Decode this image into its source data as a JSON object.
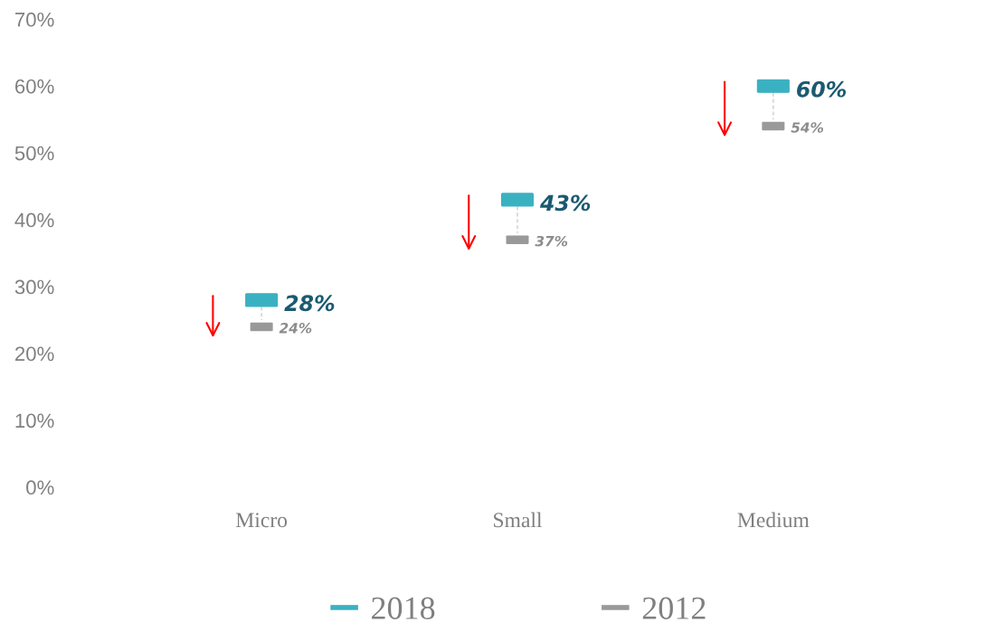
{
  "chart_data": {
    "type": "scatter",
    "categories": [
      "Micro",
      "Small",
      "Medium"
    ],
    "series": [
      {
        "name": "2018",
        "color": "#3ab1c1",
        "values": [
          28,
          43,
          60
        ],
        "value_labels": [
          "28%",
          "43%",
          "60%"
        ]
      },
      {
        "name": "2012",
        "color": "#999999",
        "values": [
          24,
          37,
          54
        ],
        "value_labels": [
          "24%",
          "37%",
          "54%"
        ]
      }
    ],
    "ylim": [
      0,
      70
    ],
    "yticks": [
      {
        "value": 0,
        "label": "0%"
      },
      {
        "value": 10,
        "label": "10%"
      },
      {
        "value": 20,
        "label": "20%"
      },
      {
        "value": 30,
        "label": "30%"
      },
      {
        "value": 40,
        "label": "40%"
      },
      {
        "value": 50,
        "label": "50%"
      },
      {
        "value": 60,
        "label": "60%"
      },
      {
        "value": 70,
        "label": "70%"
      }
    ],
    "legend": "bottom"
  }
}
